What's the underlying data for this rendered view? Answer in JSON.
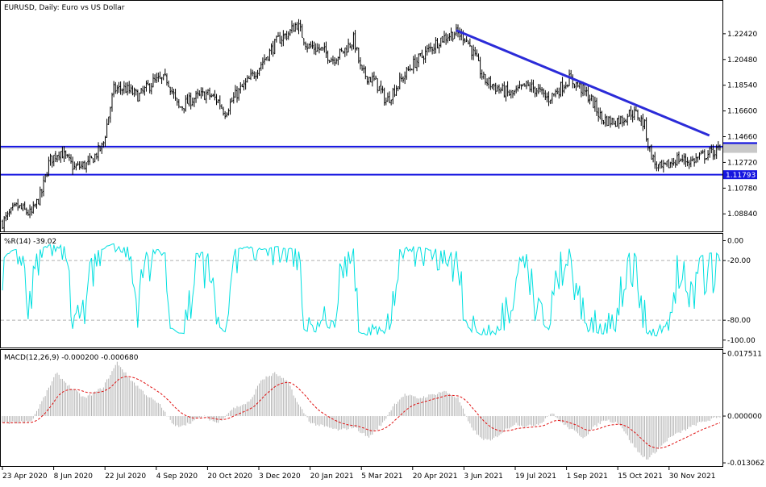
{
  "chart_data": [
    {
      "type": "candlestick",
      "title": "EURUSD, Daily:  Euro vs US Dollar",
      "y_ticks": [
        "1.22420",
        "1.20480",
        "1.18540",
        "1.16600",
        "1.14660",
        "1.12720",
        "1.10780",
        "1.08840"
      ],
      "y_tick_values": [
        1.2242,
        1.2048,
        1.1854,
        1.166,
        1.1466,
        1.1272,
        1.1078,
        1.0884
      ],
      "ylim": [
        1.077,
        1.246
      ],
      "price_markers": [
        {
          "label": "1.13908",
          "value": 1.13908
        },
        {
          "label": "1.13774",
          "value": 1.13774
        },
        {
          "label": "1.11793",
          "value": 1.11793
        }
      ],
      "horizontal_lines": [
        {
          "value": 1.13908,
          "color": "#1515e0"
        },
        {
          "value": 1.11793,
          "color": "#1515e0"
        }
      ],
      "trendline": {
        "x_start": 0.632,
        "y_start": 1.2268,
        "x_end": 0.984,
        "y_end": 1.1475,
        "color": "#2b2bd8"
      },
      "close_anchors": [
        [
          0.0,
          1.082
        ],
        [
          0.02,
          1.094
        ],
        [
          0.04,
          1.088
        ],
        [
          0.055,
          1.105
        ],
        [
          0.065,
          1.128
        ],
        [
          0.08,
          1.136
        ],
        [
          0.1,
          1.123
        ],
        [
          0.12,
          1.126
        ],
        [
          0.14,
          1.14
        ],
        [
          0.155,
          1.182
        ],
        [
          0.17,
          1.183
        ],
        [
          0.19,
          1.177
        ],
        [
          0.21,
          1.188
        ],
        [
          0.23,
          1.19
        ],
        [
          0.245,
          1.168
        ],
        [
          0.265,
          1.175
        ],
        [
          0.285,
          1.179
        ],
        [
          0.3,
          1.174
        ],
        [
          0.31,
          1.165
        ],
        [
          0.325,
          1.178
        ],
        [
          0.345,
          1.19
        ],
        [
          0.365,
          1.205
        ],
        [
          0.385,
          1.22
        ],
        [
          0.4,
          1.225
        ],
        [
          0.41,
          1.232
        ],
        [
          0.425,
          1.215
        ],
        [
          0.445,
          1.212
        ],
        [
          0.46,
          1.205
        ],
        [
          0.475,
          1.211
        ],
        [
          0.49,
          1.22
        ],
        [
          0.5,
          1.195
        ],
        [
          0.52,
          1.188
        ],
        [
          0.535,
          1.173
        ],
        [
          0.55,
          1.185
        ],
        [
          0.57,
          1.2
        ],
        [
          0.59,
          1.21
        ],
        [
          0.61,
          1.22
        ],
        [
          0.63,
          1.225
        ],
        [
          0.645,
          1.222
        ],
        [
          0.66,
          1.205
        ],
        [
          0.67,
          1.19
        ],
        [
          0.69,
          1.183
        ],
        [
          0.71,
          1.178
        ],
        [
          0.73,
          1.185
        ],
        [
          0.745,
          1.182
        ],
        [
          0.76,
          1.175
        ],
        [
          0.775,
          1.182
        ],
        [
          0.79,
          1.19
        ],
        [
          0.805,
          1.184
        ],
        [
          0.82,
          1.175
        ],
        [
          0.835,
          1.16
        ],
        [
          0.85,
          1.158
        ],
        [
          0.865,
          1.16
        ],
        [
          0.875,
          1.165
        ],
        [
          0.885,
          1.163
        ],
        [
          0.895,
          1.155
        ],
        [
          0.9,
          1.14
        ],
        [
          0.91,
          1.125
        ],
        [
          0.92,
          1.122
        ],
        [
          0.94,
          1.13
        ],
        [
          0.96,
          1.128
        ],
        [
          0.975,
          1.132
        ],
        [
          1.0,
          1.137
        ]
      ]
    },
    {
      "type": "line",
      "label": "%R(14) -39.02",
      "series": [
        {
          "name": "%R(14)",
          "color": "#00e0e0"
        }
      ],
      "y_ticks": [
        "0.00",
        "-20.00",
        "-80.00",
        "-100.00"
      ],
      "y_tick_values": [
        0,
        -20,
        -80,
        -100
      ],
      "levels": [
        -20,
        -80
      ],
      "ylim": [
        -105,
        2
      ]
    },
    {
      "type": "histogram+line",
      "label": "MACD(12,26,9) -0.000200 -0.000680",
      "series": [
        {
          "name": "MACD",
          "color": "#b4b4b4"
        },
        {
          "name": "Signal",
          "color": "#e01010"
        }
      ],
      "y_ticks": [
        "0.017511",
        "0.000000",
        "-0.013062"
      ],
      "y_tick_values": [
        0.017511,
        0,
        -0.013062
      ],
      "ylim": [
        -0.0135,
        0.0178
      ],
      "macd_anchors": [
        [
          0.0,
          -0.002
        ],
        [
          0.04,
          -0.0015
        ],
        [
          0.06,
          0.006
        ],
        [
          0.075,
          0.012
        ],
        [
          0.095,
          0.008
        ],
        [
          0.115,
          0.005
        ],
        [
          0.14,
          0.008
        ],
        [
          0.16,
          0.015
        ],
        [
          0.175,
          0.011
        ],
        [
          0.2,
          0.006
        ],
        [
          0.22,
          0.003
        ],
        [
          0.24,
          -0.003
        ],
        [
          0.26,
          -0.002
        ],
        [
          0.28,
          0.0
        ],
        [
          0.3,
          -0.002
        ],
        [
          0.32,
          0.002
        ],
        [
          0.345,
          0.004
        ],
        [
          0.36,
          0.01
        ],
        [
          0.38,
          0.012
        ],
        [
          0.4,
          0.009
        ],
        [
          0.41,
          0.004
        ],
        [
          0.43,
          -0.002
        ],
        [
          0.45,
          -0.003
        ],
        [
          0.47,
          -0.004
        ],
        [
          0.49,
          -0.003
        ],
        [
          0.51,
          -0.006
        ],
        [
          0.53,
          -0.002
        ],
        [
          0.545,
          0.003
        ],
        [
          0.56,
          0.006
        ],
        [
          0.58,
          0.005
        ],
        [
          0.6,
          0.006
        ],
        [
          0.615,
          0.007
        ],
        [
          0.635,
          0.005
        ],
        [
          0.65,
          -0.002
        ],
        [
          0.665,
          -0.006
        ],
        [
          0.68,
          -0.007
        ],
        [
          0.7,
          -0.004
        ],
        [
          0.715,
          -0.002
        ],
        [
          0.73,
          -0.003
        ],
        [
          0.75,
          -0.002
        ],
        [
          0.765,
          0.001
        ],
        [
          0.78,
          -0.002
        ],
        [
          0.795,
          -0.004
        ],
        [
          0.81,
          -0.006
        ],
        [
          0.825,
          -0.003
        ],
        [
          0.84,
          -0.001
        ],
        [
          0.86,
          -0.002
        ],
        [
          0.875,
          -0.007
        ],
        [
          0.89,
          -0.011
        ],
        [
          0.9,
          -0.012
        ],
        [
          0.915,
          -0.009
        ],
        [
          0.93,
          -0.006
        ],
        [
          0.95,
          -0.004
        ],
        [
          0.97,
          -0.002
        ],
        [
          1.0,
          -0.0002
        ]
      ]
    }
  ],
  "x_axis_labels": [
    "23 Apr 2020",
    "8 Jun 2020",
    "22 Jul 2020",
    "4 Sep 2020",
    "20 Oct 2020",
    "3 Dec 2020",
    "20 Jan 2021",
    "5 Mar 2021",
    "20 Apr 2021",
    "3 Jun 2021",
    "19 Jul 2021",
    "1 Sep 2021",
    "15 Oct 2021",
    "30 Nov 2021"
  ],
  "colors": {
    "background": "#ffffff",
    "frame": "#000000",
    "candles": "#000000",
    "support_resistance": "#1515e0",
    "trendline": "#2b2bd8",
    "price_marker_bg": "#1515e0",
    "williams_r": "#00e0e0",
    "macd_hist": "#b4b4b4",
    "signal": "#e01010",
    "level_dash": "#b0b0b0"
  }
}
